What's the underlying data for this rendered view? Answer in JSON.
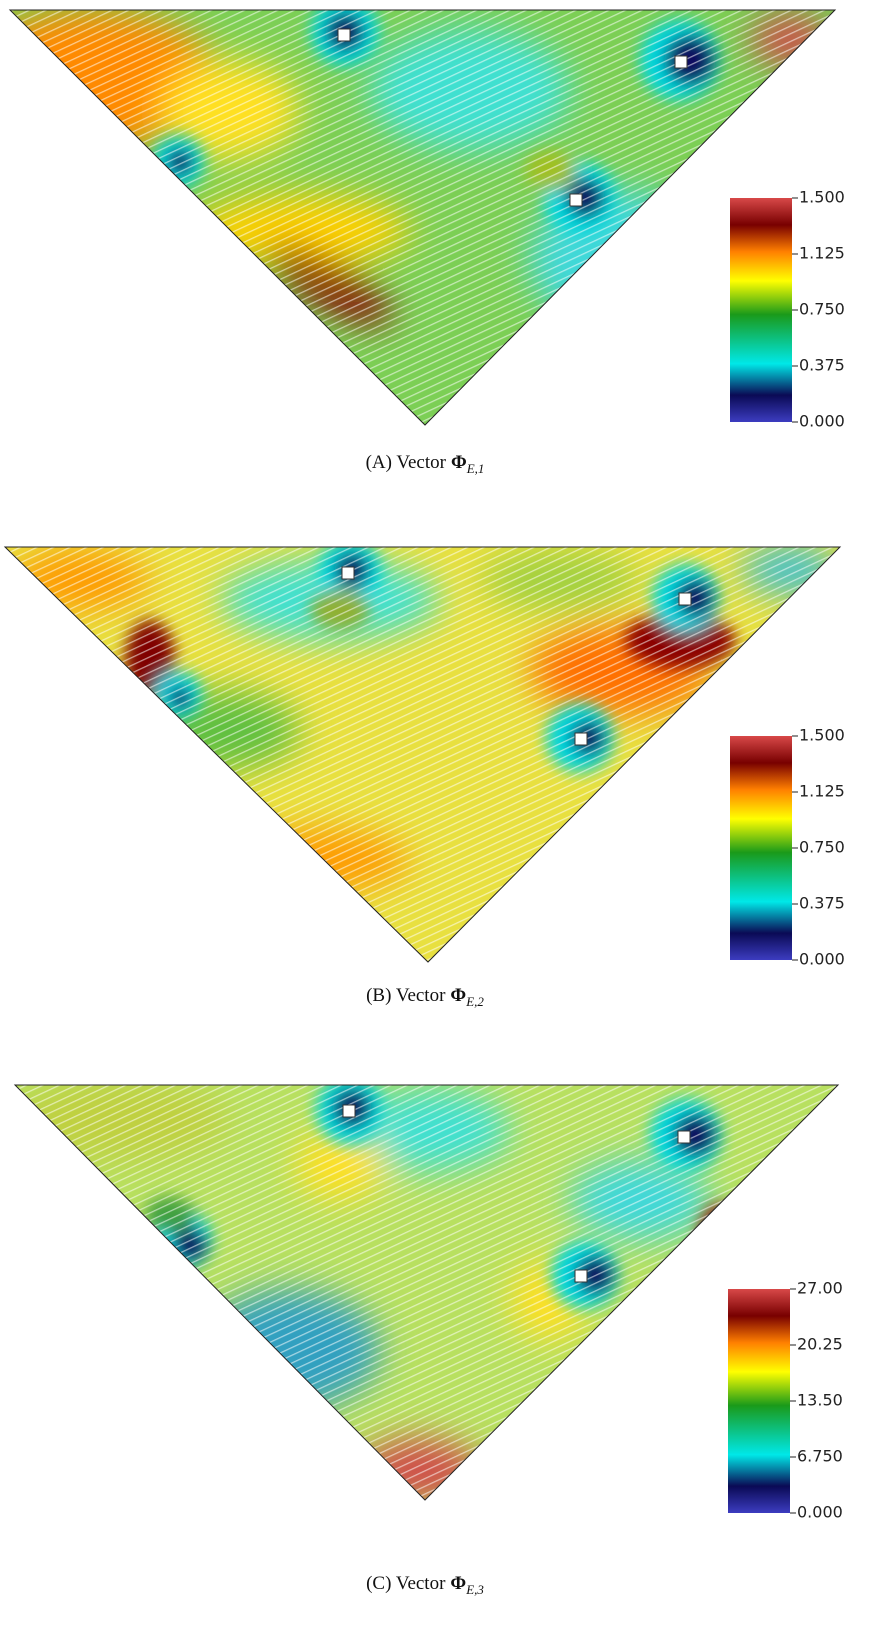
{
  "panels": [
    {
      "caption": {
        "prefix": "(A) Vector",
        "symbol": "Φ",
        "subscript": "E,1"
      },
      "colorbar": {
        "clim": [
          0,
          1.5
        ],
        "ticks": [
          {
            "value": 0,
            "label": "0.000"
          },
          {
            "value": 0.375,
            "label": "0.375"
          },
          {
            "value": 0.75,
            "label": "0.750"
          },
          {
            "value": 1.125,
            "label": "1.125"
          },
          {
            "value": 1.5,
            "label": "1.500"
          }
        ]
      }
    },
    {
      "caption": {
        "prefix": "(B) Vector",
        "symbol": "Φ",
        "subscript": "E,2"
      },
      "colorbar": {
        "clim": [
          0,
          1.5
        ],
        "ticks": [
          {
            "value": 0,
            "label": "0.000"
          },
          {
            "value": 0.375,
            "label": "0.375"
          },
          {
            "value": 0.75,
            "label": "0.750"
          },
          {
            "value": 1.125,
            "label": "1.125"
          },
          {
            "value": 1.5,
            "label": "1.500"
          }
        ]
      }
    },
    {
      "caption": {
        "prefix": "(C) Vector",
        "symbol": "Φ",
        "subscript": "E,3"
      },
      "colorbar": {
        "clim": [
          0,
          27
        ],
        "ticks": [
          {
            "value": 0,
            "label": "0.000"
          },
          {
            "value": 6.75,
            "label": "6.750"
          },
          {
            "value": 13.5,
            "label": "13.50"
          },
          {
            "value": 20.25,
            "label": "20.25"
          },
          {
            "value": 27,
            "label": "27.00"
          }
        ]
      }
    }
  ]
}
